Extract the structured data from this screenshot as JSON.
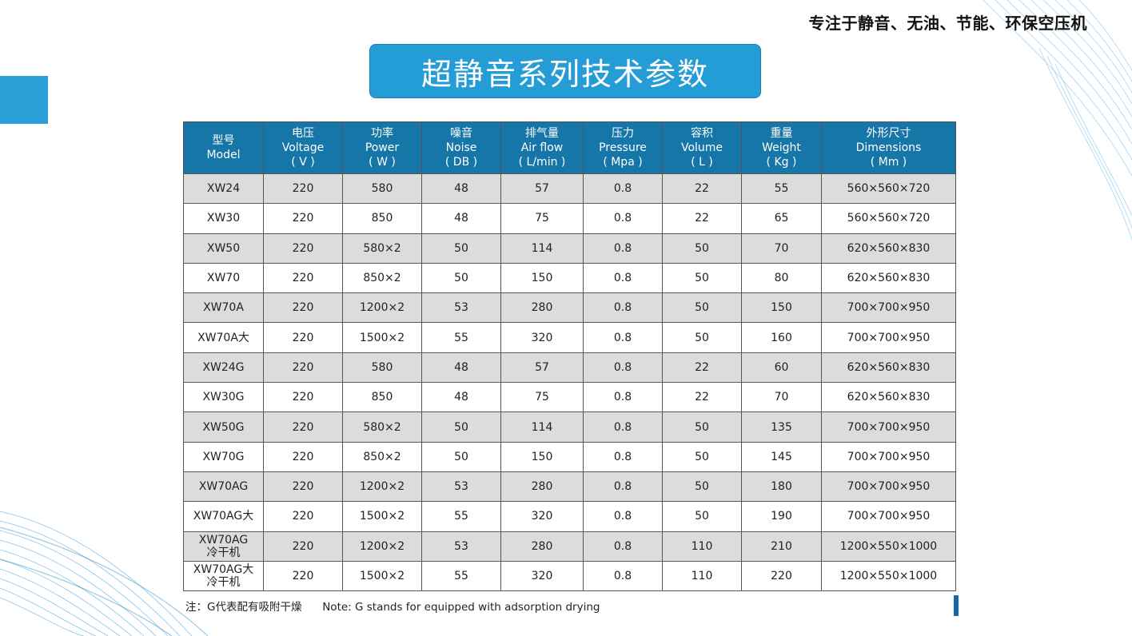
{
  "slogan": "专注于静音、无油、节能、环保空压机",
  "title": "超静音系列技术参数",
  "table": {
    "headers": [
      {
        "zh": "型号",
        "en": "Model",
        "unit": ""
      },
      {
        "zh": "电压",
        "en": "Voltage",
        "unit": "( V )"
      },
      {
        "zh": "功率",
        "en": "Power",
        "unit": "( W )"
      },
      {
        "zh": "噪音",
        "en": "Noise",
        "unit": "( DB )"
      },
      {
        "zh": "排气量",
        "en": "Air flow",
        "unit": "( L/min )"
      },
      {
        "zh": "压力",
        "en": "Pressure",
        "unit": "( Mpa )"
      },
      {
        "zh": "容积",
        "en": "Volume",
        "unit": "( L )"
      },
      {
        "zh": "重量",
        "en": "Weight",
        "unit": "( Kg )"
      },
      {
        "zh": "外形尺寸",
        "en": "Dimensions",
        "unit": "( Mm )"
      }
    ],
    "rows": [
      {
        "model": "XW24",
        "model2": "",
        "voltage": "220",
        "power": "580",
        "noise": "48",
        "airflow": "57",
        "pressure": "0.8",
        "volume": "22",
        "weight": "55",
        "dimensions": "560×560×720"
      },
      {
        "model": "XW30",
        "model2": "",
        "voltage": "220",
        "power": "850",
        "noise": "48",
        "airflow": "75",
        "pressure": "0.8",
        "volume": "22",
        "weight": "65",
        "dimensions": "560×560×720"
      },
      {
        "model": "XW50",
        "model2": "",
        "voltage": "220",
        "power": "580×2",
        "noise": "50",
        "airflow": "114",
        "pressure": "0.8",
        "volume": "50",
        "weight": "70",
        "dimensions": "620×560×830"
      },
      {
        "model": "XW70",
        "model2": "",
        "voltage": "220",
        "power": "850×2",
        "noise": "50",
        "airflow": "150",
        "pressure": "0.8",
        "volume": "50",
        "weight": "80",
        "dimensions": "620×560×830"
      },
      {
        "model": "XW70A",
        "model2": "",
        "voltage": "220",
        "power": "1200×2",
        "noise": "53",
        "airflow": "280",
        "pressure": "0.8",
        "volume": "50",
        "weight": "150",
        "dimensions": "700×700×950"
      },
      {
        "model": "XW70A大",
        "model2": "",
        "voltage": "220",
        "power": "1500×2",
        "noise": "55",
        "airflow": "320",
        "pressure": "0.8",
        "volume": "50",
        "weight": "160",
        "dimensions": "700×700×950"
      },
      {
        "model": "XW24G",
        "model2": "",
        "voltage": "220",
        "power": "580",
        "noise": "48",
        "airflow": "57",
        "pressure": "0.8",
        "volume": "22",
        "weight": "60",
        "dimensions": "620×560×830"
      },
      {
        "model": "XW30G",
        "model2": "",
        "voltage": "220",
        "power": "850",
        "noise": "48",
        "airflow": "75",
        "pressure": "0.8",
        "volume": "22",
        "weight": "70",
        "dimensions": "620×560×830"
      },
      {
        "model": "XW50G",
        "model2": "",
        "voltage": "220",
        "power": "580×2",
        "noise": "50",
        "airflow": "114",
        "pressure": "0.8",
        "volume": "50",
        "weight": "135",
        "dimensions": "700×700×950"
      },
      {
        "model": "XW70G",
        "model2": "",
        "voltage": "220",
        "power": "850×2",
        "noise": "50",
        "airflow": "150",
        "pressure": "0.8",
        "volume": "50",
        "weight": "145",
        "dimensions": "700×700×950"
      },
      {
        "model": "XW70AG",
        "model2": "",
        "voltage": "220",
        "power": "1200×2",
        "noise": "53",
        "airflow": "280",
        "pressure": "0.8",
        "volume": "50",
        "weight": "180",
        "dimensions": "700×700×950"
      },
      {
        "model": "XW70AG大",
        "model2": "",
        "voltage": "220",
        "power": "1500×2",
        "noise": "55",
        "airflow": "320",
        "pressure": "0.8",
        "volume": "50",
        "weight": "190",
        "dimensions": "700×700×950"
      },
      {
        "model": "XW70AG",
        "model2": "冷干机",
        "voltage": "220",
        "power": "1200×2",
        "noise": "53",
        "airflow": "280",
        "pressure": "0.8",
        "volume": "110",
        "weight": "210",
        "dimensions": "1200×550×1000"
      },
      {
        "model": "XW70AG大",
        "model2": "冷干机",
        "voltage": "220",
        "power": "1500×2",
        "noise": "55",
        "airflow": "320",
        "pressure": "0.8",
        "volume": "110",
        "weight": "220",
        "dimensions": "1200×550×1000"
      }
    ]
  },
  "note": "注：G代表配有吸附干燥      Note: G stands for equipped with adsorption drying",
  "colors": {
    "accent": "#249cd6",
    "header_bg": "#1776a8",
    "row_shade": "#dcdcdc"
  }
}
